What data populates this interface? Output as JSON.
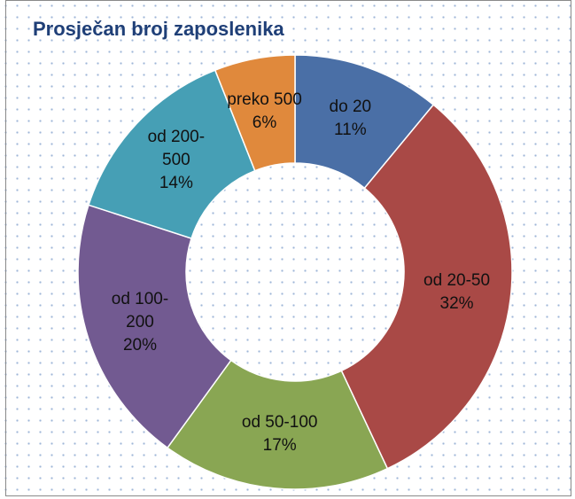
{
  "chart_data": {
    "type": "donut",
    "title": "Prosječan broj zaposlenika",
    "categories": [
      "do 20",
      "od 20-50",
      "od 50-100",
      "od 100-200",
      "od 200-500",
      "preko 500"
    ],
    "values": [
      11,
      32,
      17,
      20,
      14,
      6
    ],
    "value_labels": [
      "11%",
      "32%",
      "17%",
      "20%",
      "14%",
      "6%"
    ],
    "colors": [
      "#4a6fa6",
      "#a94946",
      "#89a653",
      "#725a91",
      "#469fb5",
      "#e0893c"
    ]
  }
}
